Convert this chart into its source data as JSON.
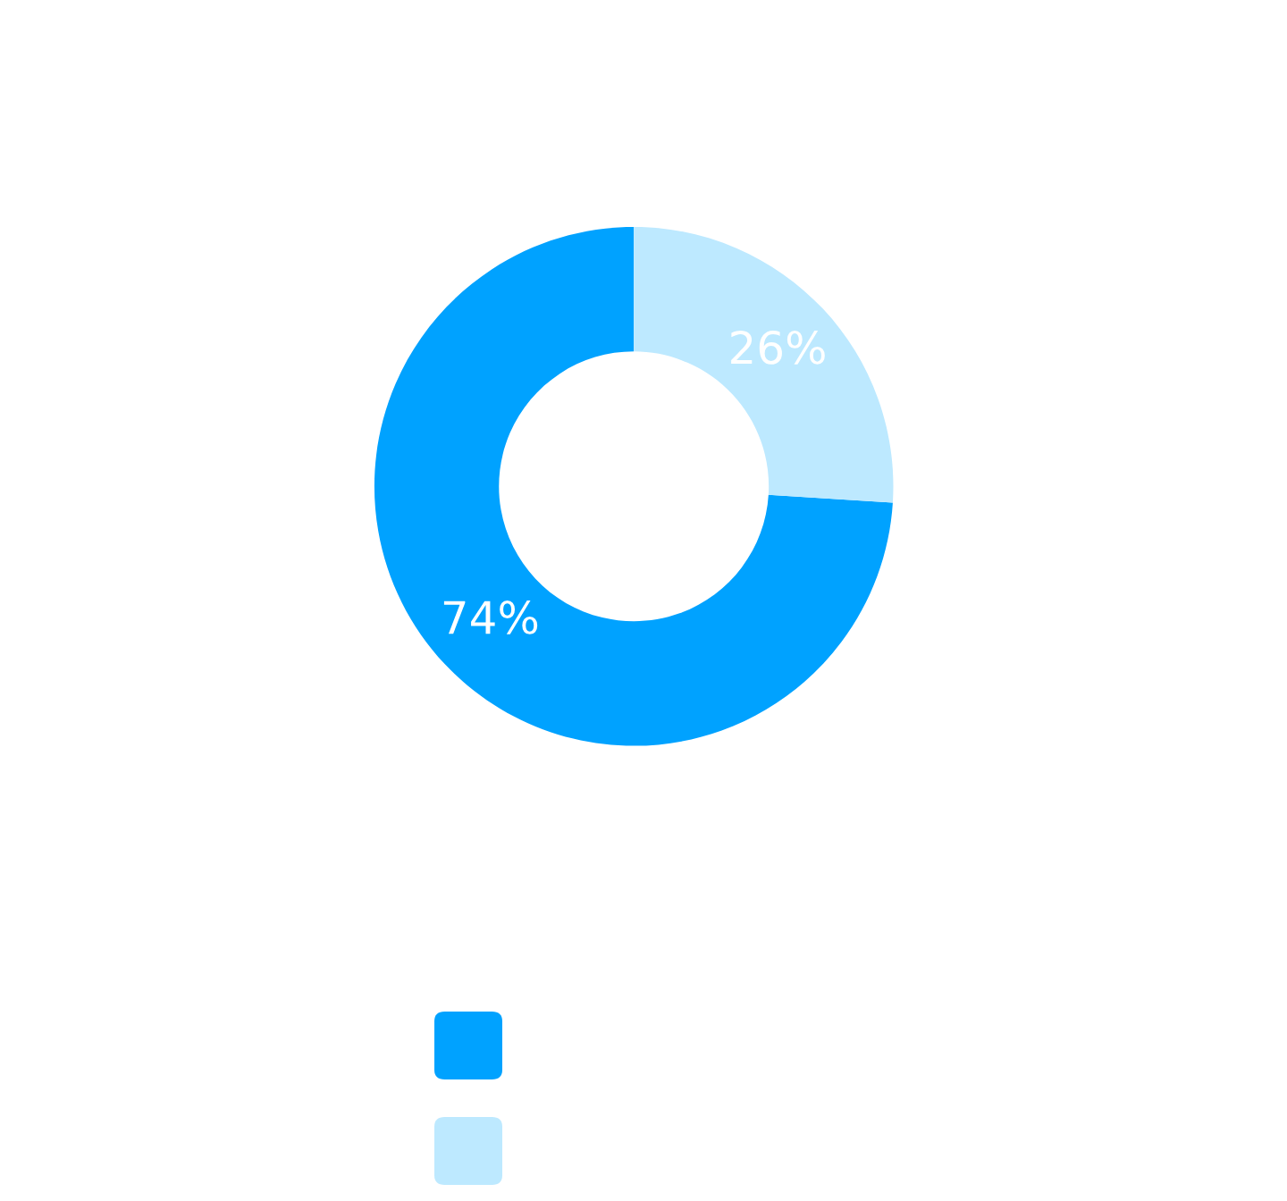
{
  "chart_data": {
    "type": "donut",
    "categories": [
      null,
      null
    ],
    "values": [
      74,
      26
    ],
    "colors": [
      "#00a2ff",
      "#bde9ff"
    ],
    "value_labels": [
      "74%",
      "26%"
    ]
  }
}
